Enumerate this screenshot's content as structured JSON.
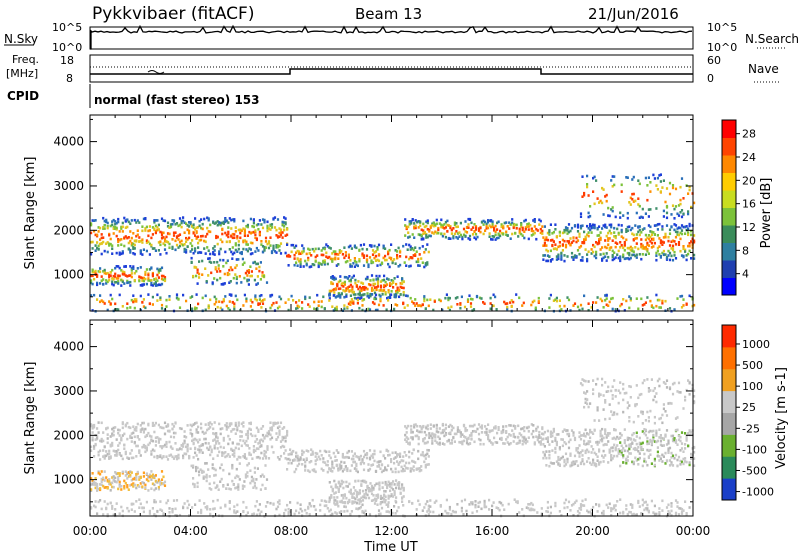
{
  "header": {
    "title": "Pykkvibaer (fitACF)",
    "beam": "Beam 13",
    "date": "21/Jun/2016"
  },
  "nsky": {
    "label": "N.Sky",
    "ticks_left": [
      "10^5",
      "10^0"
    ],
    "ticks_right": [
      "10^5",
      "10^0"
    ],
    "search_label": "N.Search"
  },
  "freq": {
    "label_line1": "Freq.",
    "label_line2": "[MHz]",
    "ticks_left": [
      "18",
      "8"
    ],
    "ticks_right": [
      "60",
      "0"
    ],
    "nave_label": "Nave"
  },
  "cpid": {
    "label": "CPID",
    "text": "normal (fast stereo) 153"
  },
  "chart_data": [
    {
      "type": "heatmap",
      "name": "power-panel",
      "ylabel": "Slant Range [km]",
      "ylim": [
        180,
        4600
      ],
      "yticks": [
        "1000",
        "2000",
        "3000",
        "4000"
      ],
      "colorbar_label": "Power [dB]",
      "colorbar_ticks": [
        "4",
        "8",
        "12",
        "16",
        "20",
        "24",
        "28"
      ],
      "colorbar_colors": [
        "#0000ff",
        "#1f3fb0",
        "#2e7fa0",
        "#3a8c5a",
        "#7cc23a",
        "#c8dd20",
        "#ffcc00",
        "#ff8800",
        "#ff4400",
        "#ff0000"
      ]
    },
    {
      "type": "heatmap",
      "name": "velocity-panel",
      "ylabel": "Slant Range [km]",
      "ylim": [
        180,
        4600
      ],
      "yticks": [
        "1000",
        "2000",
        "3000",
        "4000"
      ],
      "colorbar_label": "Velocity [m s-1]",
      "colorbar_ticks": [
        "1000",
        "500",
        "100",
        "25",
        "-25",
        "-100",
        "-500",
        "-1000"
      ],
      "colorbar_colors": [
        "#1a3fc8",
        "#2a8a5a",
        "#6ab030",
        "#a6a6a6",
        "#c8c8c8",
        "#f0a020",
        "#ff7000",
        "#ff2a00"
      ]
    }
  ],
  "xaxis": {
    "label": "Time UT",
    "ticks": [
      "00:00",
      "04:00",
      "08:00",
      "12:00",
      "16:00",
      "20:00",
      "00:00"
    ]
  }
}
